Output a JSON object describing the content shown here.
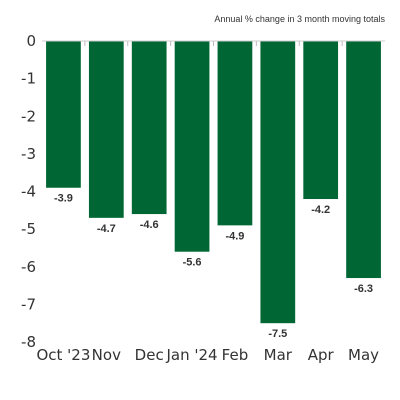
{
  "chart_data": {
    "type": "bar",
    "subtitle": "Annual % change in 3 month moving totals",
    "categories": [
      "Oct '23",
      "Nov",
      "Dec",
      "Jan '24",
      "Feb",
      "Mar",
      "Apr",
      "May"
    ],
    "values": [
      -3.9,
      -4.7,
      -4.6,
      -5.6,
      -4.9,
      -7.5,
      -4.2,
      -6.3
    ],
    "data_labels": [
      "-3.9",
      "-4.7",
      "-4.6",
      "-5.6",
      "-4.9",
      "-7.5",
      "-4.2",
      "-6.3"
    ],
    "y_ticks": [
      "0",
      "-1",
      "-2",
      "-3",
      "-4",
      "-5",
      "-6",
      "-7",
      "-8"
    ],
    "ylim": [
      -8,
      0
    ],
    "grid": false,
    "bar_color": "#006633"
  }
}
